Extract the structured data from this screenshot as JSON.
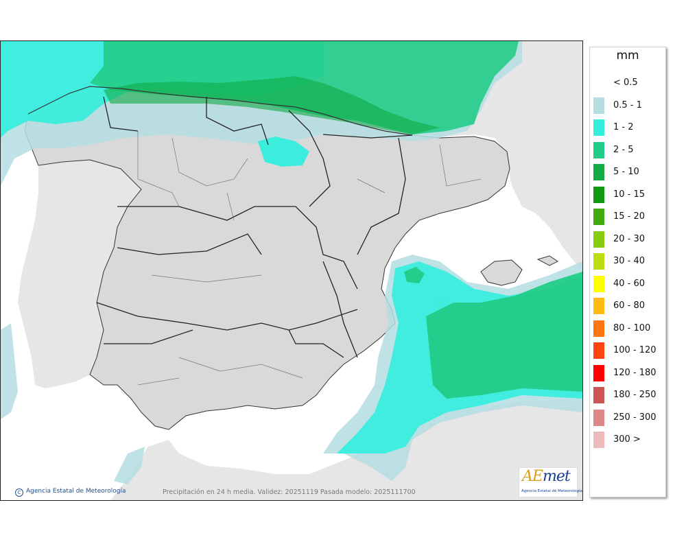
{
  "legend": {
    "unit": "mm",
    "items": [
      {
        "label": "< 0.5",
        "color": "#ffffff"
      },
      {
        "label": "0.5 - 1",
        "color": "#b4dde2"
      },
      {
        "label": "1 - 2",
        "color": "#33eedd"
      },
      {
        "label": "2 - 5",
        "color": "#22cc88"
      },
      {
        "label": "5 - 10",
        "color": "#11aa44"
      },
      {
        "label": "10 - 15",
        "color": "#119911"
      },
      {
        "label": "15 - 20",
        "color": "#44aa11"
      },
      {
        "label": "20 - 30",
        "color": "#88cc11"
      },
      {
        "label": "30 - 40",
        "color": "#bbdd11"
      },
      {
        "label": "40 - 60",
        "color": "#ffff00"
      },
      {
        "label": "60 - 80",
        "color": "#ffbb11"
      },
      {
        "label": "80 - 100",
        "color": "#ff7711"
      },
      {
        "label": "100 - 120",
        "color": "#ff4411"
      },
      {
        "label": "120 - 180",
        "color": "#ff0000"
      },
      {
        "label": "180 - 250",
        "color": "#cc5555"
      },
      {
        "label": "250 - 300",
        "color": "#dd8888"
      },
      {
        "label": "300 >",
        "color": "#eebbbb"
      }
    ]
  },
  "footer": {
    "credit": "Agencia Estatal de Meteorología",
    "caption": "Precipitación en 24 h media. Validez: 20251119 Pasada modelo: 2025111700"
  },
  "logo": {
    "word_ae": "AE",
    "word_rest": "met",
    "subtitle": "Agencia Estatal de Meteorología"
  },
  "colors": {
    "sea": "#ffffff",
    "land_outside": "#e6e6e6",
    "land_spain": "#d9d9d9",
    "boundary": "#222222"
  }
}
